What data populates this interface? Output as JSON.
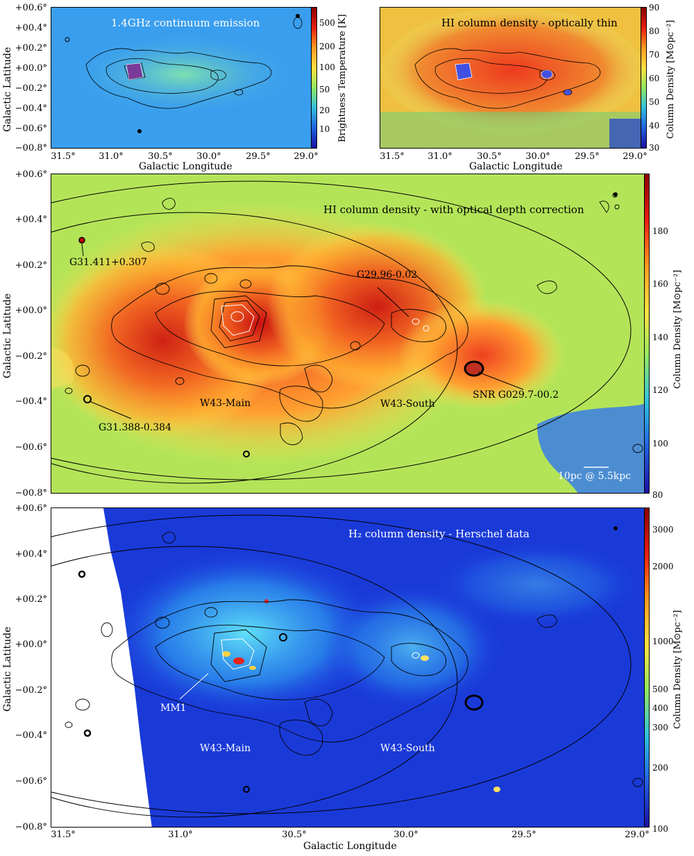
{
  "panels": {
    "p1": {
      "title": "1.4GHz continuum emission",
      "xlabel": "Galactic Longitude",
      "ylabel": "Galactic Latitude",
      "cbar_label": "Brightness Temperature [K]",
      "cbar_ticks": [
        "500",
        "200",
        "100",
        "50",
        "20",
        "10"
      ],
      "colors": {
        "bg": "#3aa0f0",
        "high": "#ffd23a",
        "peak": "#e83a1e"
      }
    },
    "p2": {
      "title": "HI column density - optically thin",
      "xlabel": "Galactic Longitude",
      "cbar_label": "Column Density [M⊙pc⁻²]",
      "cbar_ticks": [
        "90",
        "80",
        "70",
        "60",
        "50",
        "40",
        "30"
      ],
      "colors": {
        "bg": "#f2a23a",
        "high": "#ee3a1f",
        "low": "#36c6d8"
      }
    },
    "p3": {
      "title": "HI column density - with optical depth correction",
      "ylabel": "Galactic Latitude",
      "cbar_label": "Column Density [M⊙pc⁻²]",
      "cbar_ticks": [
        "180",
        "160",
        "140",
        "120",
        "100",
        "80"
      ],
      "scalebar": "10pc @ 5.5kpc",
      "annotations": {
        "g31411": "G31.411+0.307",
        "g2996": "G29.96-0.02",
        "w43main": "W43-Main",
        "w43south": "W43-South",
        "snr": "SNR G029.7-00.2",
        "g31388": "G31.388-0.384"
      },
      "colors": {
        "bg": "#9ae35a",
        "mid": "#ffb030",
        "high": "#e83a1a",
        "low": "#2f8de8"
      }
    },
    "p4": {
      "title": "H₂ column density - Herschel data",
      "xlabel": "Galactic Longitude",
      "ylabel": "Galactic Latitude",
      "cbar_label": "Column Density [M⊙pc⁻²]",
      "cbar_ticks": [
        "3000",
        "2000",
        "1000",
        "500",
        "400",
        "300",
        "200",
        "100"
      ],
      "annotations": {
        "mm1": "MM1",
        "w43main": "W43-Main",
        "w43south": "W43-South"
      },
      "colors": {
        "bg": "#1a3fe0",
        "mid": "#2ec8f0",
        "high": "#e8241a"
      }
    }
  },
  "axes": {
    "lat_ticks": [
      "+00.6°",
      "+00.4°",
      "+00.2°",
      "+00.0°",
      "−00.2°",
      "−00.4°",
      "−00.6°",
      "−00.8°"
    ],
    "lon_ticks": [
      "31.5°",
      "31.0°",
      "30.5°",
      "30.0°",
      "29.5°",
      "29.0°"
    ]
  }
}
